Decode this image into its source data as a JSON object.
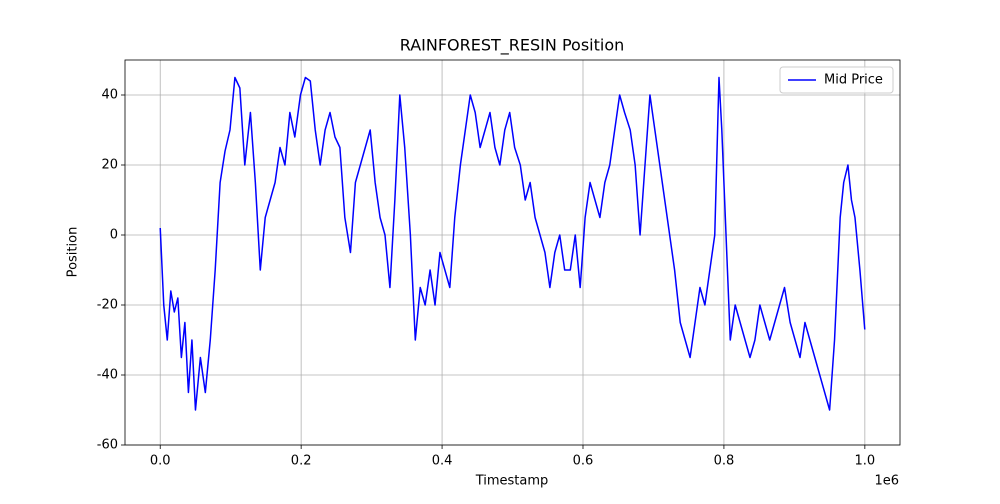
{
  "chart_data": {
    "type": "line",
    "title": "RAINFOREST_RESIN Position",
    "x_label": "Timestamp",
    "y_label": "Position",
    "x_offset_label": "1e6",
    "x": [
      0,
      5000,
      10000,
      15000,
      20000,
      25000,
      30000,
      35000,
      40000,
      45000,
      50000,
      57000,
      64000,
      71000,
      78000,
      85000,
      92000,
      99000,
      106000,
      113000,
      120000,
      128000,
      135000,
      142000,
      149000,
      156000,
      163000,
      170000,
      177000,
      184000,
      191000,
      199000,
      206000,
      213000,
      220000,
      227000,
      234000,
      241000,
      248000,
      255000,
      262000,
      270000,
      277000,
      284000,
      291000,
      298000,
      305000,
      312000,
      319000,
      326000,
      333000,
      340000,
      347000,
      355000,
      362000,
      369000,
      376000,
      383000,
      390000,
      397000,
      404000,
      411000,
      418000,
      426000,
      433000,
      440000,
      447000,
      454000,
      461000,
      468000,
      475000,
      482000,
      489000,
      496000,
      503000,
      511000,
      518000,
      525000,
      532000,
      539000,
      546000,
      553000,
      560000,
      567000,
      574000,
      582000,
      589000,
      596000,
      603000,
      610000,
      617000,
      624000,
      631000,
      638000,
      645000,
      652000,
      659000,
      667000,
      674000,
      681000,
      688000,
      695000,
      702000,
      709000,
      716000,
      723000,
      730000,
      738000,
      745000,
      752000,
      759000,
      766000,
      773000,
      780000,
      787000,
      793000,
      797000,
      801000,
      805000,
      809000,
      816000,
      823000,
      830000,
      837000,
      844000,
      851000,
      858000,
      865000,
      872000,
      879000,
      886000,
      894000,
      901000,
      908000,
      915000,
      922000,
      929000,
      936000,
      943000,
      950000,
      957000,
      965000,
      970000,
      976000,
      981000,
      986000,
      993000,
      999900
    ],
    "series": [
      {
        "name": "Mid Price",
        "color": "#0000ff",
        "values": [
          2,
          -20,
          -30,
          -16,
          -22,
          -18,
          -35,
          -25,
          -45,
          -30,
          -50,
          -35,
          -45,
          -30,
          -10,
          15,
          24,
          30,
          45,
          42,
          20,
          35,
          15,
          -10,
          5,
          10,
          15,
          25,
          20,
          35,
          28,
          40,
          45,
          44,
          30,
          20,
          30,
          35,
          28,
          25,
          5,
          -5,
          15,
          20,
          25,
          30,
          15,
          5,
          0,
          -15,
          10,
          40,
          25,
          0,
          -30,
          -15,
          -20,
          -10,
          -20,
          -5,
          -10,
          -15,
          5,
          20,
          30,
          40,
          35,
          25,
          30,
          35,
          25,
          20,
          30,
          35,
          25,
          20,
          10,
          15,
          5,
          0,
          -5,
          -15,
          -5,
          0,
          -10,
          -10,
          0,
          -15,
          5,
          15,
          10,
          5,
          15,
          20,
          30,
          40,
          35,
          30,
          20,
          0,
          20,
          40,
          30,
          20,
          10,
          0,
          -10,
          -25,
          -30,
          -35,
          -25,
          -15,
          -20,
          -10,
          0,
          45,
          30,
          10,
          -10,
          -30,
          -20,
          -25,
          -30,
          -35,
          -30,
          -20,
          -25,
          -30,
          -25,
          -20,
          -15,
          -25,
          -30,
          -35,
          -25,
          -30,
          -35,
          -40,
          -45,
          -50,
          -30,
          5,
          15,
          20,
          10,
          5,
          -10,
          -27
        ]
      }
    ],
    "xlim": [
      -49995,
      1049895
    ],
    "ylim": [
      -60,
      50
    ],
    "xticks": [
      {
        "value": 0,
        "label": "0.0"
      },
      {
        "value": 200000,
        "label": "0.2"
      },
      {
        "value": 400000,
        "label": "0.4"
      },
      {
        "value": 600000,
        "label": "0.6"
      },
      {
        "value": 800000,
        "label": "0.8"
      },
      {
        "value": 1000000,
        "label": "1.0"
      }
    ],
    "yticks": [
      -60,
      -40,
      -20,
      0,
      20,
      40
    ],
    "grid": true,
    "legend": "upper right"
  }
}
